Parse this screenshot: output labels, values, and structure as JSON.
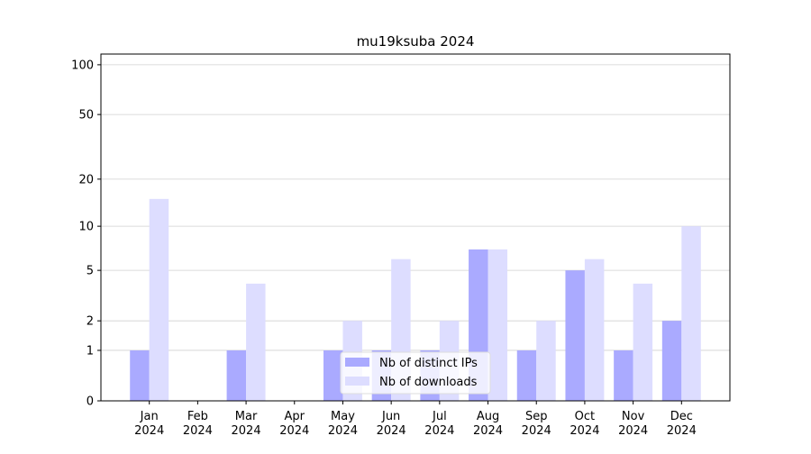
{
  "chart_data": {
    "type": "bar",
    "title": "mu19ksuba 2024",
    "categories": [
      "Jan 2024",
      "Feb 2024",
      "Mar 2024",
      "Apr 2024",
      "May 2024",
      "Jun 2024",
      "Jul 2024",
      "Aug 2024",
      "Sep 2024",
      "Oct 2024",
      "Nov 2024",
      "Dec 2024"
    ],
    "series": [
      {
        "name": "Nb of distinct IPs",
        "color": "#aaaaff",
        "values": [
          1,
          0,
          1,
          0,
          1,
          1,
          1,
          7,
          1,
          5,
          1,
          2
        ]
      },
      {
        "name": "Nb of downloads",
        "color": "#ddddff",
        "values": [
          15,
          0,
          4,
          0,
          2,
          6,
          2,
          7,
          2,
          6,
          4,
          10
        ]
      }
    ],
    "yscale": "log1p",
    "ylim": [
      0,
      116
    ],
    "yticks": [
      0,
      1,
      2,
      5,
      10,
      20,
      50,
      100
    ],
    "grid": true,
    "legend": "lower center"
  }
}
